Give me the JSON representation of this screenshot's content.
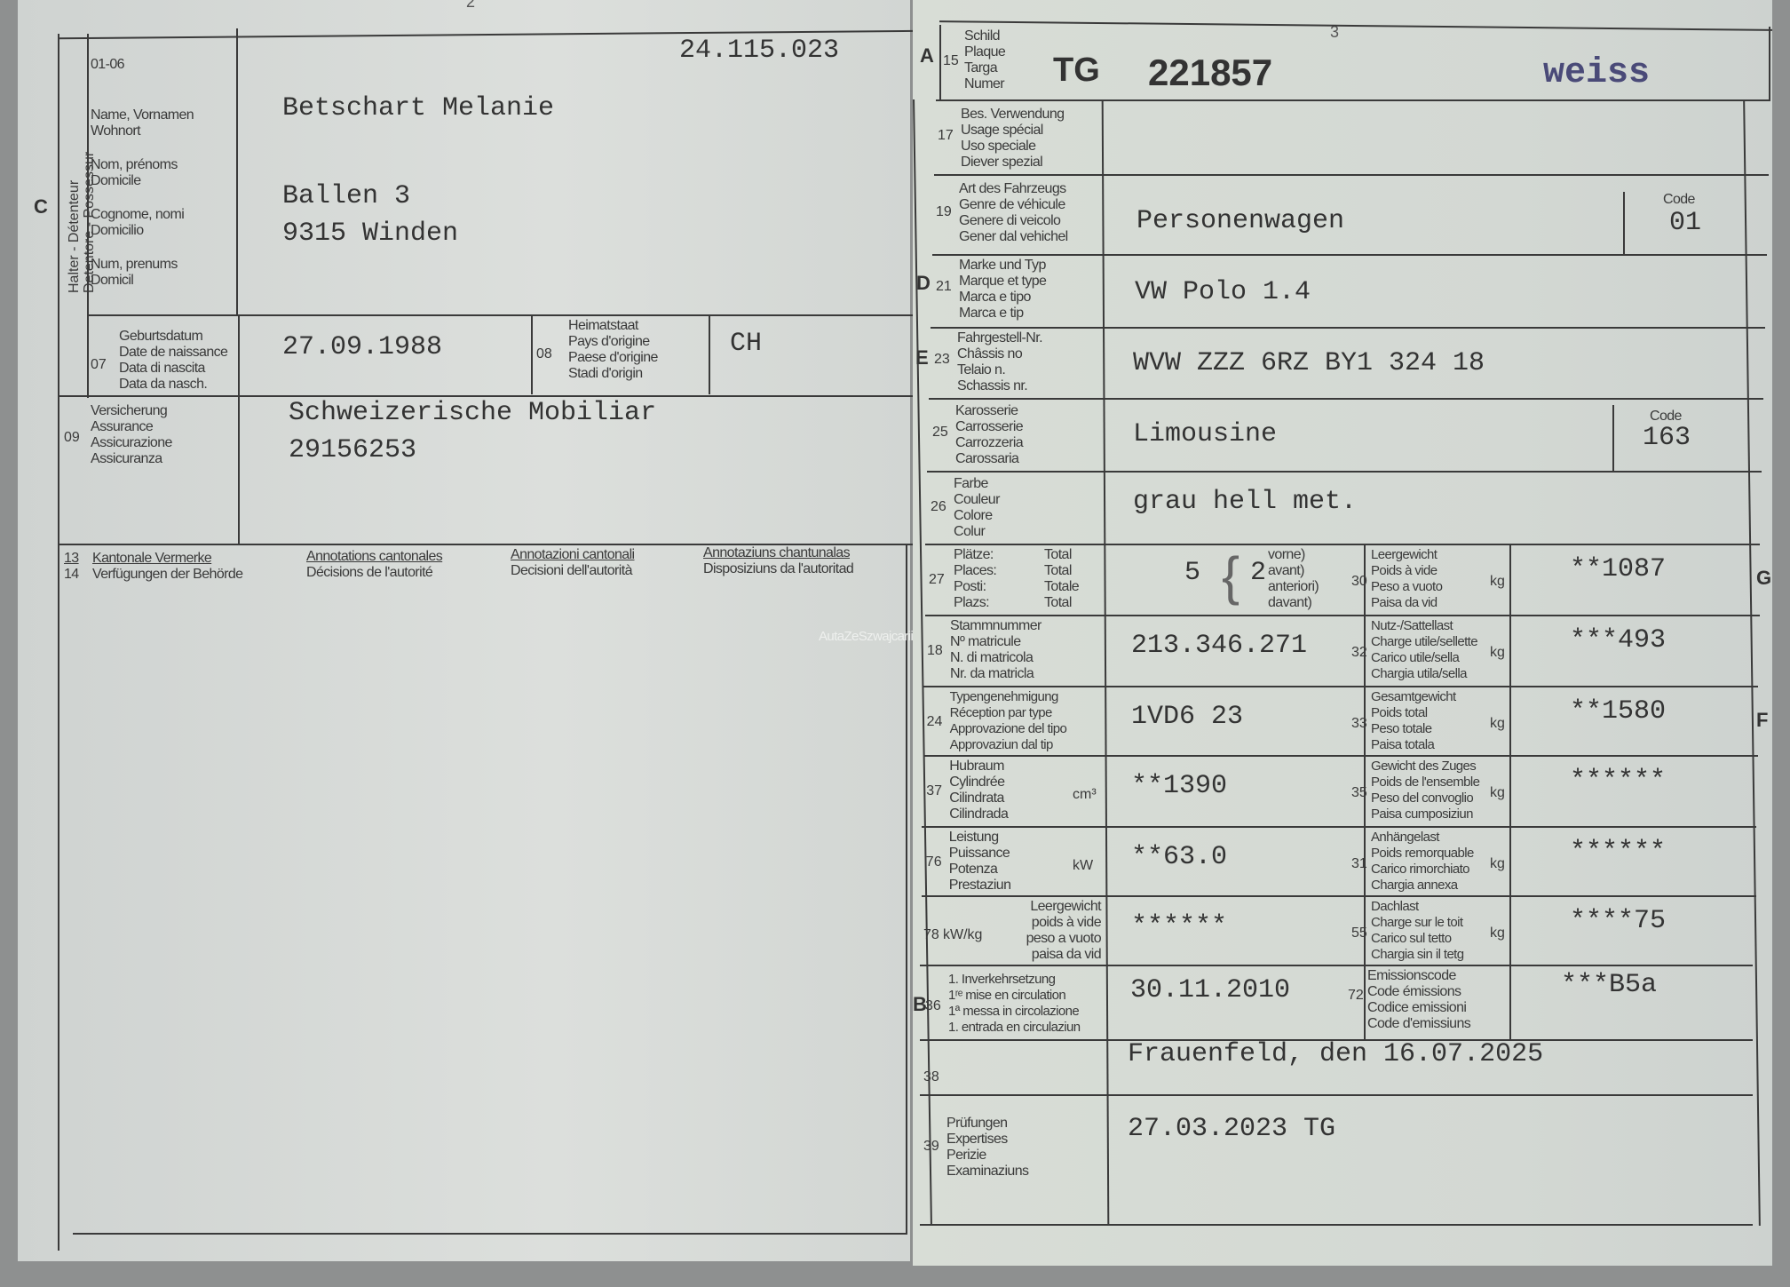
{
  "left_page": {
    "page_number": "2",
    "section_letter": "C",
    "holder_vertical_label": [
      "Halter - Détenteur",
      "Detentore - Possessur"
    ],
    "field_code": "01-06",
    "holder_labels": [
      "Name, Vornamen",
      "Wohnort",
      "Nom, prénoms",
      "Domicile",
      "Cognome, nomi",
      "Domicilio",
      "Num, prenums",
      "Domicil"
    ],
    "document_number": "24.115.023",
    "holder_name": "Betschart Melanie",
    "address_line1": "Ballen 3",
    "address_line2": "9315 Winden",
    "birth": {
      "code": "07",
      "labels": [
        "Geburtsdatum",
        "Date de naissance",
        "Data di nascita",
        "Data da nasch."
      ],
      "value": "27.09.1988"
    },
    "origin": {
      "code": "08",
      "labels": [
        "Heimatstaat",
        "Pays d'origine",
        "Paese d'origine",
        "Stadi d'origin"
      ],
      "value": "CH"
    },
    "insurance": {
      "code": "09",
      "labels": [
        "Versicherung",
        "Assurance",
        "Assicurazione",
        "Assicuranza"
      ],
      "company": "Schweizerische Mobiliar",
      "number": "29156253"
    },
    "annotations": {
      "code_13": "13",
      "code_14": "14",
      "columns": [
        {
          "title": "Kantonale Vermerke",
          "subtitle": "Verfügungen der Behörde"
        },
        {
          "title": "Annotations cantonales",
          "subtitle": "Décisions de l'autorité"
        },
        {
          "title": "Annotazioni cantonali",
          "subtitle": "Decisioni dell'autorità"
        },
        {
          "title": "Annotaziuns chantunalas",
          "subtitle": "Disposiziuns da l'autoritad"
        }
      ]
    },
    "watermark": "AutaZeSzwajcarii"
  },
  "right_page": {
    "page_number": "3",
    "plate": {
      "letter": "A",
      "code": "15",
      "labels": [
        "Schild",
        "Plaque",
        "Targa",
        "Numer"
      ],
      "canton": "TG",
      "number": "221857",
      "color": "weiss",
      "color_hex": "#4a4a78"
    },
    "special_use": {
      "code": "17",
      "labels": [
        "Bes. Verwendung",
        "Usage spécial",
        "Uso speciale",
        "Diever spezial"
      ],
      "value": ""
    },
    "vehicle_type": {
      "code": "19",
      "labels": [
        "Art des Fahrzeugs",
        "Genre de véhicule",
        "Genere di veicolo",
        "Gener dal vehichel"
      ],
      "value": "Personenwagen",
      "code_label": "Code",
      "code_value": "01"
    },
    "make_model": {
      "letter": "D",
      "code": "21",
      "labels": [
        "Marke und Typ",
        "Marque et type",
        "Marca e tipo",
        "Marca e tip"
      ],
      "value": "VW Polo 1.4"
    },
    "chassis": {
      "letter": "E",
      "code": "23",
      "labels": [
        "Fahrgestell-Nr.",
        "Châssis no",
        "Telaio n.",
        "Schassis nr."
      ],
      "value": "WVW ZZZ 6RZ BY1 324 18"
    },
    "body": {
      "code": "25",
      "labels": [
        "Karosserie",
        "Carrosserie",
        "Carrozzeria",
        "Carossaria"
      ],
      "value": "Limousine",
      "code_label": "Code",
      "code_value": "163"
    },
    "color": {
      "code": "26",
      "labels": [
        "Farbe",
        "Couleur",
        "Colore",
        "Colur"
      ],
      "value": "grau hell met."
    },
    "seats": {
      "code": "27",
      "labels": [
        "Plätze:",
        "Places:",
        "Posti:",
        "Plazs:"
      ],
      "total_labels": [
        "Total",
        "Total",
        "Totale",
        "Total"
      ],
      "total": "5",
      "front": "2",
      "front_labels": [
        "vorne)",
        "avant)",
        "anteriori)",
        "davant)"
      ]
    },
    "empty_weight": {
      "code": "30",
      "labels": [
        "Leergewicht",
        "Poids à vide",
        "Peso a vuoto",
        "Paisa da vid"
      ],
      "unit": "kg",
      "value": "**1087",
      "letter": "G"
    },
    "registry": {
      "code": "18",
      "labels": [
        "Stammnummer",
        "Nº matricule",
        "N. di matricola",
        "Nr. da matricla"
      ],
      "value": "213.346.271"
    },
    "payload": {
      "code": "32",
      "labels": [
        "Nutz-/Sattellast",
        "Charge utile/sellette",
        "Carico utile/sella",
        "Chargia utila/sella"
      ],
      "unit": "kg",
      "value": "***493"
    },
    "type_approval": {
      "code": "24",
      "labels": [
        "Typengenehmigung",
        "Réception par type",
        "Approvazione del tipo",
        "Approvaziun dal tip"
      ],
      "value": "1VD6 23"
    },
    "total_weight": {
      "code": "33",
      "labels": [
        "Gesamtgewicht",
        "Poids total",
        "Peso totale",
        "Paisa totala"
      ],
      "unit": "kg",
      "value": "**1580",
      "letter": "F"
    },
    "displacement": {
      "code": "37",
      "labels": [
        "Hubraum",
        "Cylindrée",
        "Cilindrata",
        "Cilindrada"
      ],
      "unit": "cm³",
      "value": "**1390"
    },
    "train_weight": {
      "code": "35",
      "labels": [
        "Gewicht des Zuges",
        "Poids de l'ensemble",
        "Peso del convoglio",
        "Paisa cumposiziun"
      ],
      "unit": "kg",
      "value": "******"
    },
    "power": {
      "code": "76",
      "labels": [
        "Leistung",
        "Puissance",
        "Potenza",
        "Prestaziun"
      ],
      "unit": "kW",
      "value": "**63.0"
    },
    "trailer_load": {
      "code": "31",
      "labels": [
        "Anhängelast",
        "Poids remorquable",
        "Carico rimorchiato",
        "Chargia annexa"
      ],
      "unit": "kg",
      "value": "******"
    },
    "power_weight": {
      "code": "78",
      "unit": "kW/kg",
      "labels": [
        "Leergewicht",
        "poids à vide",
        "peso a vuoto",
        "paisa da vid"
      ],
      "value": "******"
    },
    "roof_load": {
      "code": "55",
      "labels": [
        "Dachlast",
        "Charge sur le toit",
        "Carico sul tetto",
        "Chargia sin il tetg"
      ],
      "unit": "kg",
      "value": "****75"
    },
    "first_registration": {
      "letter": "B",
      "code": "36",
      "labels": [
        "1. Inverkehrsetzung",
        "1ʳᵉ mise en circulation",
        "1ª messa in circolazione",
        "1. entrada en circulaziun"
      ],
      "value": "30.11.2010"
    },
    "emission_code": {
      "code": "72",
      "labels": [
        "Emissionscode",
        "Code émissions",
        "Codice emissioni",
        "Code d'emissiuns"
      ],
      "value": "***B5a"
    },
    "issue": {
      "code": "38",
      "value": "Frauenfeld, den 16.07.2025"
    },
    "inspections": {
      "code": "39",
      "labels": [
        "Prüfungen",
        "Expertises",
        "Perizie",
        "Examinaziuns"
      ],
      "value": "27.03.2023 TG"
    }
  }
}
